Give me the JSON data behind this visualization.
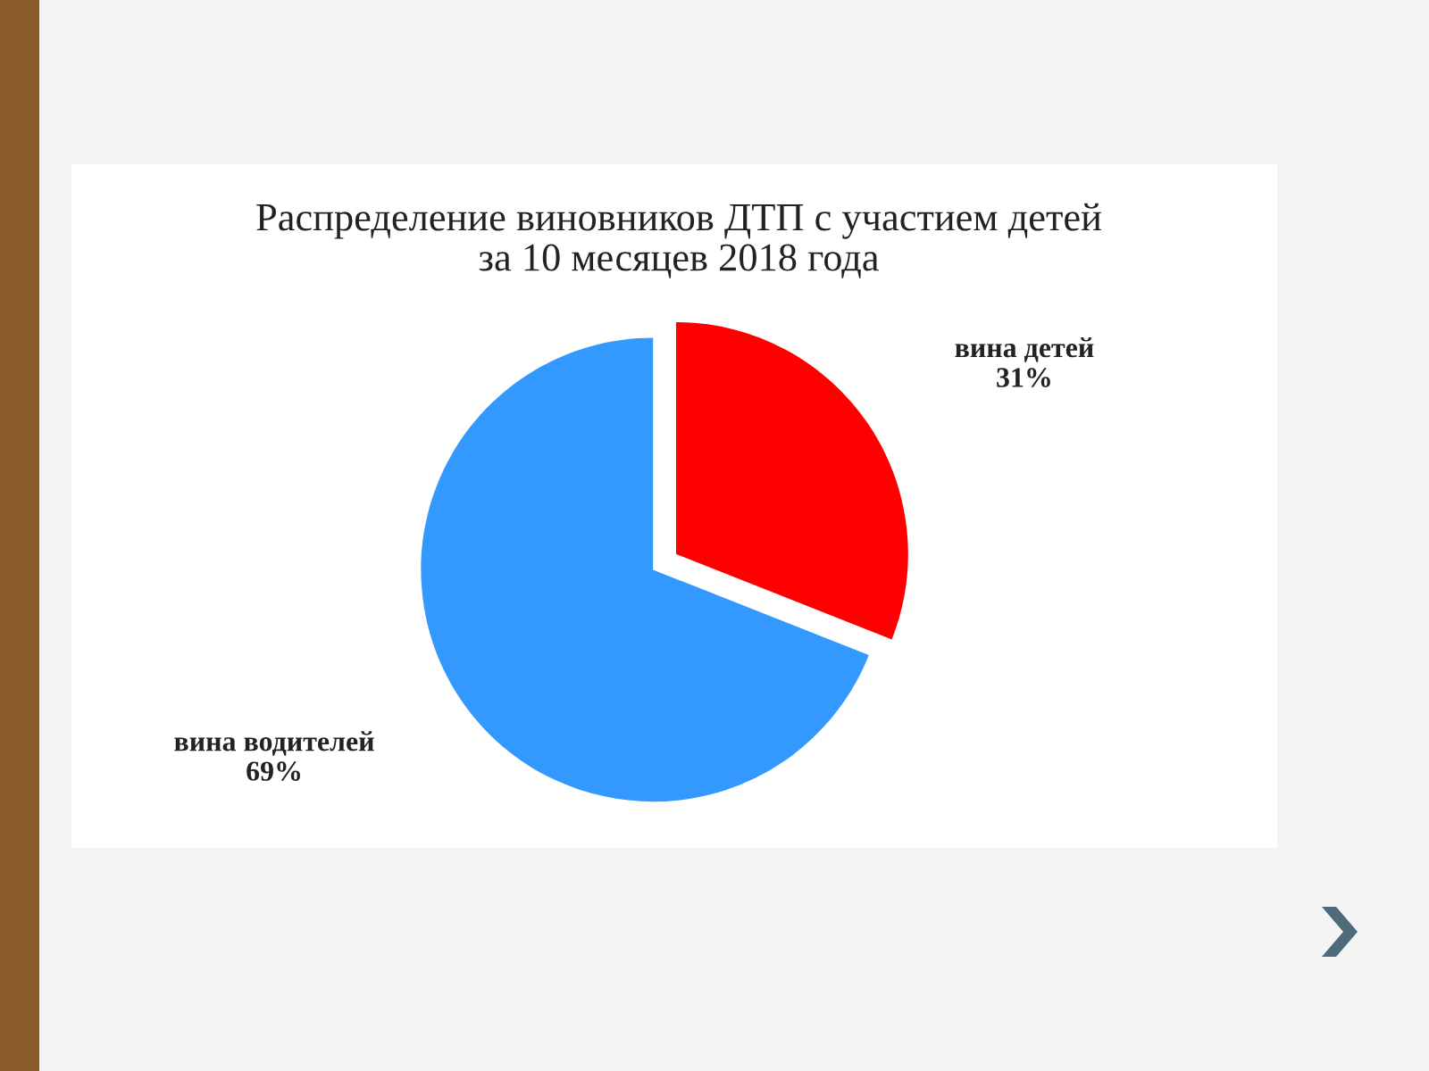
{
  "chart_data": {
    "type": "pie",
    "title": "Распределение виновников ДТП с участием детей\nза 10 месяцев 2018 года",
    "categories": [
      "вина детей",
      "вина водителей"
    ],
    "values": [
      31,
      69
    ],
    "colors": [
      "#ff0000",
      "#3399ff"
    ],
    "value_labels": [
      "31%",
      "69%"
    ]
  }
}
